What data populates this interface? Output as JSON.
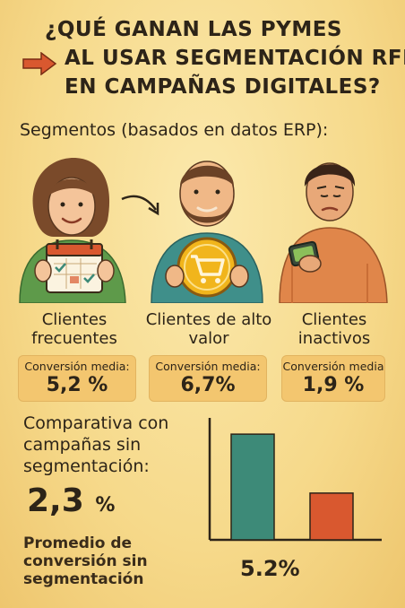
{
  "title": {
    "line1": "¿QUÉ GANAN LAS PYMES",
    "line2": "AL USAR SEGMENTACIÓN RFM",
    "line3": "EN CAMPAÑAS DIGITALES?"
  },
  "subtitle": "Segmentos (basados en datos ERP):",
  "icons": {
    "arrow": "arrow-right-icon",
    "calendar": "calendar-icon",
    "cart": "shopping-cart-icon",
    "phone": "smartphone-icon"
  },
  "segments": [
    {
      "label": "Clientes frecuentes",
      "caption": "Conversión media:",
      "value": "5,2 %"
    },
    {
      "label": "Clientes de alto valor",
      "caption": "Conversión media:",
      "value": "6,7%"
    },
    {
      "label": "Clientes inactivos",
      "caption": "Conversión media",
      "value": "1,9 %"
    }
  ],
  "comparison": {
    "heading": "Comparativa con campañas sin segmentación:",
    "value_number": "2,3",
    "value_unit": "%",
    "note": "Promedio de conversión sin segmentación"
  },
  "chart_data": {
    "type": "bar",
    "categories": [
      "",
      ""
    ],
    "values": [
      5.2,
      2.3
    ],
    "colors": [
      "#3d8a78",
      "#d9582f"
    ],
    "ylim": [
      0,
      6
    ],
    "grid": false,
    "value_label": "5.2%"
  },
  "colors": {
    "background": "#f6dc8e",
    "box": "#f3c66f",
    "accent_arrow": "#d9582f",
    "teal": "#3d8a78"
  }
}
